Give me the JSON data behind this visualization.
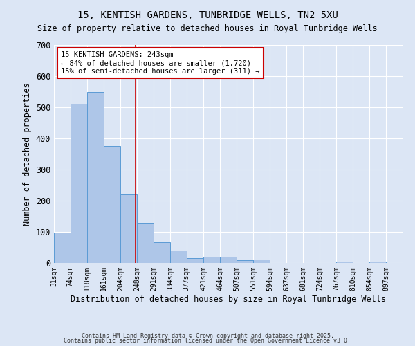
{
  "title_line1": "15, KENTISH GARDENS, TUNBRIDGE WELLS, TN2 5XU",
  "title_line2": "Size of property relative to detached houses in Royal Tunbridge Wells",
  "xlabel": "Distribution of detached houses by size in Royal Tunbridge Wells",
  "ylabel": "Number of detached properties",
  "bar_left_edges": [
    31,
    74,
    118,
    161,
    204,
    248,
    291,
    334,
    377,
    421,
    464,
    507,
    551,
    594,
    637,
    681,
    724,
    767,
    810,
    854
  ],
  "bar_widths": [
    43,
    44,
    43,
    43,
    44,
    43,
    43,
    43,
    44,
    43,
    43,
    44,
    43,
    43,
    44,
    43,
    43,
    43,
    44,
    43
  ],
  "bar_heights": [
    97,
    511,
    549,
    375,
    220,
    128,
    66,
    40,
    15,
    20,
    20,
    9,
    11,
    1,
    1,
    1,
    1,
    5,
    1,
    5
  ],
  "x_tick_labels": [
    "31sqm",
    "74sqm",
    "118sqm",
    "161sqm",
    "204sqm",
    "248sqm",
    "291sqm",
    "334sqm",
    "377sqm",
    "421sqm",
    "464sqm",
    "507sqm",
    "551sqm",
    "594sqm",
    "637sqm",
    "681sqm",
    "724sqm",
    "767sqm",
    "810sqm",
    "854sqm",
    "897sqm"
  ],
  "x_tick_positions": [
    31,
    74,
    118,
    161,
    204,
    248,
    291,
    334,
    377,
    421,
    464,
    507,
    551,
    594,
    637,
    681,
    724,
    767,
    810,
    854,
    897
  ],
  "bar_facecolor": "#aec6e8",
  "bar_edgecolor": "#5b9bd5",
  "ylim": [
    0,
    700
  ],
  "yticks": [
    0,
    100,
    200,
    300,
    400,
    500,
    600,
    700
  ],
  "xlim_min": 31,
  "xlim_max": 940,
  "vline_x": 243,
  "vline_color": "#cc0000",
  "annotation_text": "15 KENTISH GARDENS: 243sqm\n← 84% of detached houses are smaller (1,720)\n15% of semi-detached houses are larger (311) →",
  "annotation_box_color": "#ffffff",
  "annotation_box_edgecolor": "#cc0000",
  "footnote_line1": "Contains HM Land Registry data © Crown copyright and database right 2025.",
  "footnote_line2": "Contains public sector information licensed under the Open Government Licence v3.0.",
  "background_color": "#dce6f5",
  "grid_color": "#ffffff",
  "figsize": [
    6.0,
    5.0
  ],
  "dpi": 100
}
